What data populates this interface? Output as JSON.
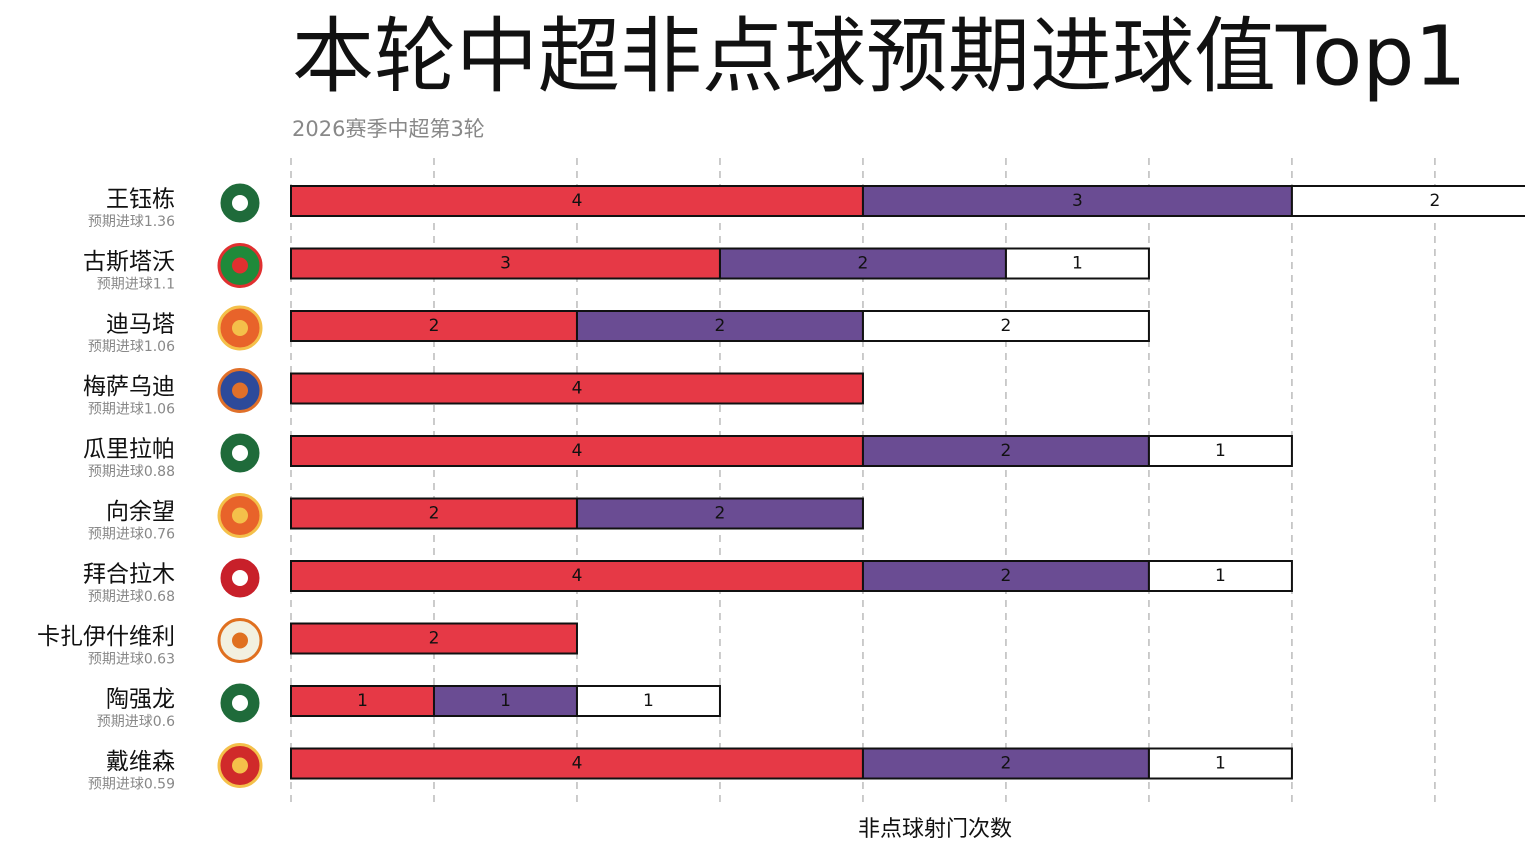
{
  "chart_data": {
    "type": "stacked-bar-horizontal",
    "title": "本轮中超非点球预期进球值Top1",
    "subtitle": "2026赛季中超第3轮",
    "x_label": "非点球射门次数",
    "categories": [
      "王钰栋",
      "古斯塔沃",
      "迪马塔",
      "梅萨乌迪",
      "瓜里拉帕",
      "向余望",
      "拜合拉木",
      "卡扎伊什维利",
      "陶强龙",
      "戴维森"
    ],
    "category_sublabels": [
      "预期进球1.36",
      "预期进球1.1",
      "预期进球1.06",
      "预期进球1.06",
      "预期进球0.88",
      "预期进球0.76",
      "预期进球0.68",
      "预期进球0.63",
      "预期进球0.6",
      "预期进球0.59"
    ],
    "series": [
      {
        "color": "#e63946",
        "values": [
          4,
          3,
          2,
          4,
          4,
          2,
          4,
          2,
          1,
          4
        ]
      },
      {
        "color": "#6a4c93",
        "values": [
          3,
          2,
          2,
          null,
          2,
          2,
          2,
          null,
          1,
          2
        ]
      },
      {
        "color": "#ffffff",
        "values": [
          2,
          1,
          2,
          null,
          1,
          null,
          1,
          null,
          1,
          1
        ]
      }
    ],
    "xlim": [
      0,
      8.63
    ],
    "xticks": [
      0,
      1,
      2,
      3,
      4,
      5,
      6,
      7,
      8
    ],
    "grid": true
  }
}
